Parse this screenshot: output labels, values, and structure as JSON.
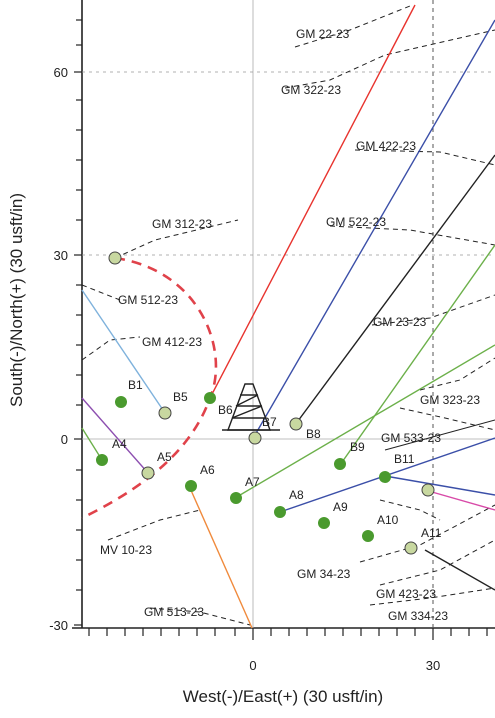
{
  "axes": {
    "x_title": "West(-)/East(+) (30 usft/in)",
    "y_title": "South(-)/North(+) (30 usft/in)",
    "x_ticks": [
      "0",
      "30"
    ],
    "y_ticks": [
      "60",
      "30",
      "0",
      "-30"
    ]
  },
  "well_labels": {
    "gm22": "GM 22-23",
    "gm322": "GM 322-23",
    "gm422": "GM 422-23",
    "gm522": "GM 522-23",
    "gm312": "GM 312-23",
    "gm512": "GM 512-23",
    "gm412": "GM 412-23",
    "gm23": "GM 23-23",
    "gm323": "GM 323-23",
    "gm533": "GM 533-23",
    "mv10": "MV 10-23",
    "gm34": "GM 34-23",
    "gm423": "GM 423-23",
    "gm334": "GM 334-23",
    "gm513": "GM 513-23"
  },
  "slot_labels": {
    "a4": "A4",
    "a5": "A5",
    "a6": "A6",
    "a7": "A7",
    "a8": "A8",
    "a9": "A9",
    "a10": "A10",
    "a11": "A11",
    "b1": "B1",
    "b5": "B5",
    "b6": "B6",
    "b7": "B7",
    "b8": "B8",
    "b9": "B9",
    "b11": "B11"
  },
  "colors": {
    "red": "#e8332e",
    "blue": "#3b4fa8",
    "green": "#6cb04a",
    "lightblue": "#7fb2dc",
    "orange": "#f08a3c",
    "purple": "#8d4fb0",
    "pink": "#d84aa8",
    "dash_red": "#e0424a",
    "dot_green": "#4a9a2e"
  }
}
